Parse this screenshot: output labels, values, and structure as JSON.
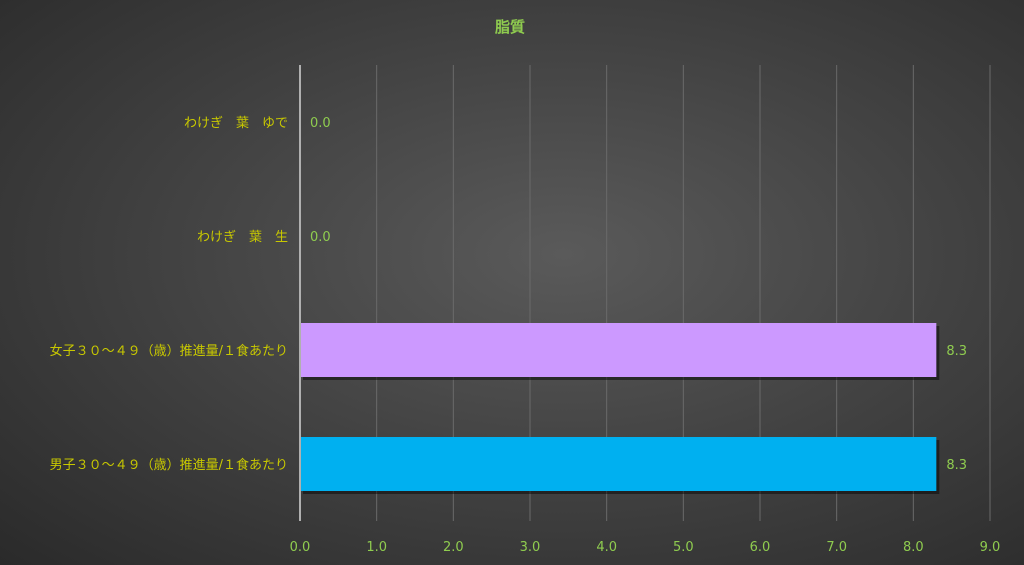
{
  "chart_data": {
    "type": "bar",
    "orientation": "horizontal",
    "title": "脂質",
    "categories": [
      "わけぎ　葉　ゆで",
      "わけぎ　葉　生",
      "女子３０～４９（歳）推進量/１食あたり",
      "男子３０～４９（歳）推進量/１食あたり"
    ],
    "values": [
      0.0,
      0.0,
      8.3,
      8.3
    ],
    "value_labels": [
      "0.0",
      "0.0",
      "8.3",
      "8.3"
    ],
    "bar_colors": [
      "#cc99ff",
      "#cc99ff",
      "#cc99ff",
      "#00b0f0"
    ],
    "xlim": [
      0,
      9
    ],
    "xticks": [
      "0.0",
      "1.0",
      "2.0",
      "3.0",
      "4.0",
      "5.0",
      "6.0",
      "7.0",
      "8.0",
      "9.0"
    ],
    "grid": true,
    "legend": "none",
    "colors": {
      "title": "#8fcc4f",
      "category_label": "#c8c800",
      "value_label": "#8fcc4f",
      "tick_label": "#8fcc4f",
      "grid": "#6a6a6a",
      "axis": "#b0b0b0"
    }
  }
}
